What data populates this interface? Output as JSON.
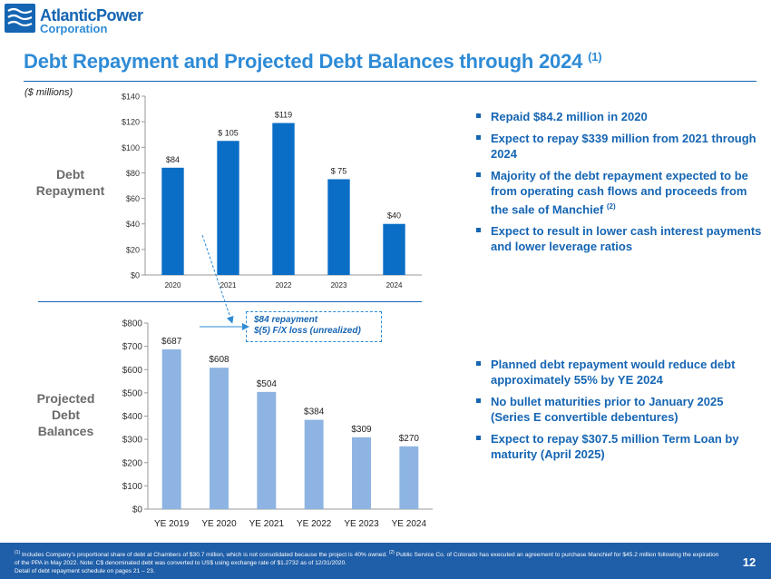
{
  "brand": {
    "name": "AtlanticPower",
    "subtitle": "Corporation",
    "accent": "#1565b3",
    "light_accent": "#2e8bd6",
    "bar_dark": "#0a6ec6",
    "bar_light": "#8db4e2"
  },
  "title": {
    "text": "Debt Repayment and Projected Debt Balances through 2024",
    "note": "(1)"
  },
  "units": "($ millions)",
  "rows": {
    "repayment": [
      "Debt",
      "Repayment"
    ],
    "balances": [
      "Projected",
      "Debt",
      "Balances"
    ]
  },
  "callout": {
    "line1": "$84 repayment",
    "line2": "$(5) F/X loss (unrealized)"
  },
  "bullets_top": [
    {
      "text": "Repaid $84.2 million in 2020"
    },
    {
      "text": "Expect to repay $339 million from 2021 through 2024"
    },
    {
      "text": "Majority of the debt repayment expected to be from operating cash flows and proceeds from the sale of Manchief",
      "note": "(2)"
    },
    {
      "text": "Expect to result in lower cash interest payments and lower leverage ratios"
    }
  ],
  "bullets_bottom": [
    {
      "text": "Planned debt repayment would reduce debt approximately 55% by YE 2024"
    },
    {
      "text": "No bullet maturities prior to January 2025 (Series E convertible debentures)"
    },
    {
      "text": "Expect to repay $307.5 million Term Loan by maturity (April 2025)"
    }
  ],
  "footnote": {
    "note1_mark": "(1)",
    "note1": "Includes Company's proportional share of debt at Chambers of $30.7 million, which is not consolidated because the project is 40% owned.",
    "note2_mark": "(2)",
    "note2": "Public Service Co. of Colorado has executed an agreement to purchase Manchief for $45.2 million following the expiration of the PPA in May 2022.   Note: C$ denominated debt was converted to US$ using exchange rate of $1.2732 as of 12/31/2020.",
    "line3": "Detail of debt repayment schedule on pages 21 – 23."
  },
  "page_number": "12",
  "chart_data": [
    {
      "type": "bar",
      "title": "Debt Repayment",
      "categories": [
        "2020",
        "2021",
        "2022",
        "2023",
        "2024"
      ],
      "values": [
        84,
        105,
        119,
        75,
        40
      ],
      "data_labels": [
        "$84",
        "$ 105",
        "$119",
        "$ 75",
        "$40"
      ],
      "yticks": [
        "$0",
        "$20",
        "$40",
        "$60",
        "$80",
        "$100",
        "$120",
        "$140"
      ],
      "ylim": [
        0,
        140
      ],
      "xlabel": "",
      "ylabel": "",
      "grid": false
    },
    {
      "type": "bar",
      "title": "Projected Debt Balances",
      "categories": [
        "YE 2019",
        "YE 2020",
        "YE 2021",
        "YE 2022",
        "YE 2023",
        "YE 2024"
      ],
      "values": [
        687,
        608,
        504,
        384,
        309,
        270
      ],
      "data_labels": [
        "$687",
        "$608",
        "$504",
        "$384",
        "$309",
        "$270"
      ],
      "yticks": [
        "$0",
        "$100",
        "$200",
        "$300",
        "$400",
        "$500",
        "$600",
        "$700",
        "$800"
      ],
      "ylim": [
        0,
        800
      ],
      "xlabel": "",
      "ylabel": "",
      "grid": false
    }
  ]
}
